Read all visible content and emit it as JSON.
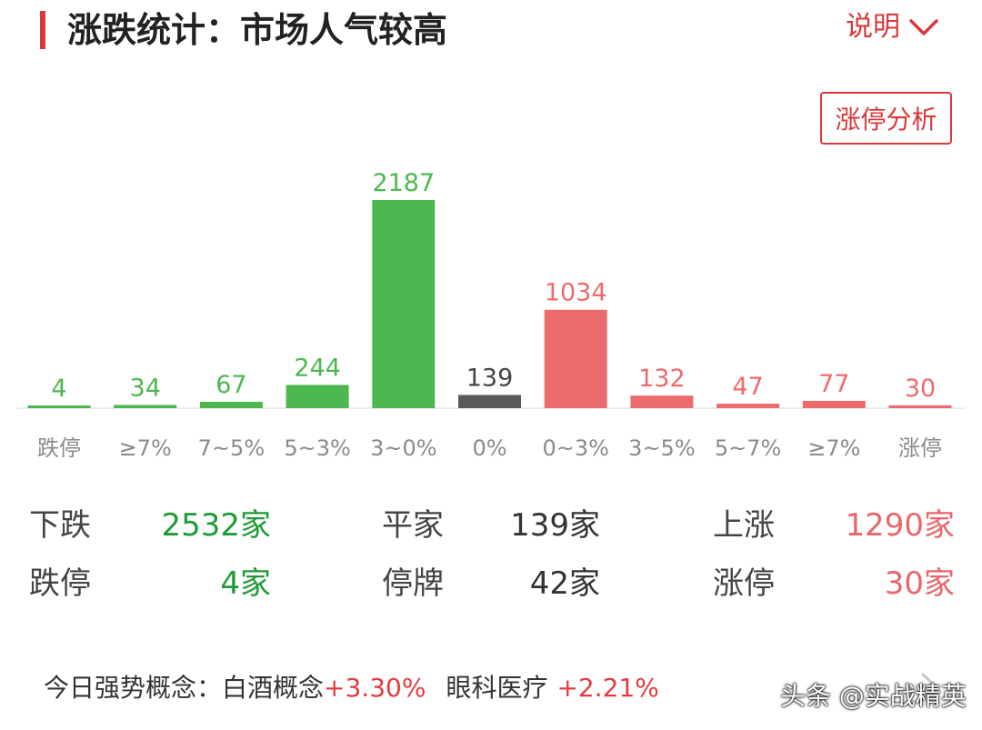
{
  "header": {
    "title": "涨跌统计：市场人气较高",
    "explain_label": "说明",
    "analysis_button": "涨停分析"
  },
  "chart_data": {
    "type": "bar",
    "categories": [
      "跌停",
      "≥7%",
      "7~5%",
      "5~3%",
      "3~0%",
      "0%",
      "0~3%",
      "3~5%",
      "5~7%",
      "≥7%",
      "涨停"
    ],
    "values": [
      4,
      34,
      67,
      244,
      2187,
      139,
      1034,
      132,
      47,
      77,
      30
    ],
    "bar_colors": [
      "#4cb84f",
      "#4cb84f",
      "#4cb84f",
      "#4cb84f",
      "#4cb84f",
      "#595959",
      "#ec6b6c",
      "#ec6b6c",
      "#ec6b6c",
      "#ec6b6c",
      "#ec6b6c"
    ],
    "label_colors": [
      "#4cb84f",
      "#4cb84f",
      "#4cb84f",
      "#4cb84f",
      "#4cb84f",
      "#444444",
      "#ec6b6c",
      "#ec6b6c",
      "#ec6b6c",
      "#ec6b6c",
      "#ec6b6c"
    ],
    "ylim": [
      0,
      2187
    ],
    "grid": false
  },
  "stats": {
    "down_label": "下跌",
    "down_value": "2532家",
    "flat_label": "平家",
    "flat_value": "139家",
    "up_label": "上涨",
    "up_value": "1290家",
    "limit_down_label": "跌停",
    "limit_down_value": "4家",
    "suspended_label": "停牌",
    "suspended_value": "42家",
    "limit_up_label": "涨停",
    "limit_up_value": "30家"
  },
  "concepts": {
    "prefix": "今日强势概念：",
    "items": [
      {
        "name": "白酒概念",
        "change": "+3.30%"
      },
      {
        "name": "眼科医疗",
        "change": "+2.21%"
      }
    ]
  },
  "watermark": "头条 @实战精英",
  "colors": {
    "accent": "#d9383a",
    "green": "#1f9b35",
    "red": "#e8676a"
  }
}
